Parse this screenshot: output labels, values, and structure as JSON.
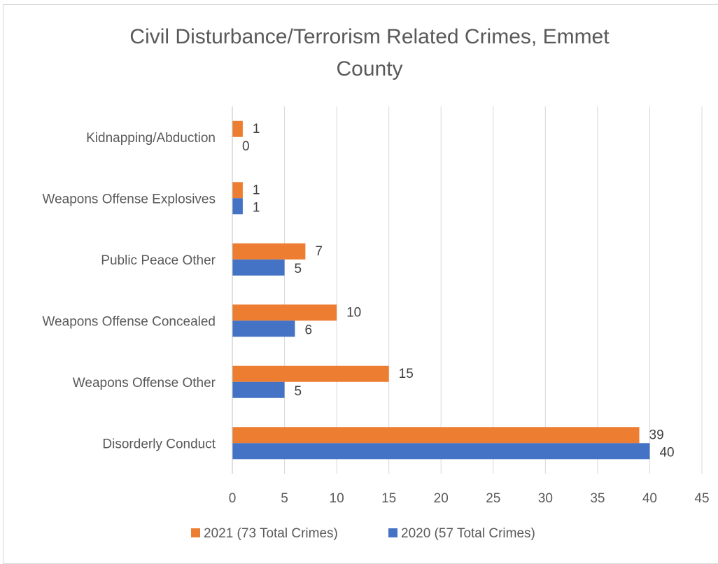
{
  "chart_data": {
    "type": "bar",
    "orientation": "horizontal",
    "title": "Civil Disturbance/Terrorism  Related Crimes, Emmet County",
    "title_lines": [
      "Civil Disturbance/Terrorism  Related Crimes, Emmet",
      "County"
    ],
    "categories": [
      "Kidnapping/Abduction",
      "Weapons Offense Explosives",
      "Public Peace Other",
      "Weapons Offense Concealed",
      "Weapons Offense Other",
      "Disorderly Conduct"
    ],
    "series": [
      {
        "name": "2021 (73 Total Crimes)",
        "color": "#ed7d31",
        "values": [
          1,
          1,
          7,
          10,
          15,
          39
        ]
      },
      {
        "name": "2020 (57 Total Crimes)",
        "color": "#4472c4",
        "values": [
          0,
          1,
          5,
          6,
          5,
          40
        ]
      }
    ],
    "xlim": [
      0,
      45
    ],
    "xticks": [
      0,
      5,
      10,
      15,
      20,
      25,
      30,
      35,
      40,
      45
    ],
    "xlabel": "",
    "ylabel": "",
    "grid": "vertical",
    "legend_position": "bottom",
    "data_labels": true
  }
}
